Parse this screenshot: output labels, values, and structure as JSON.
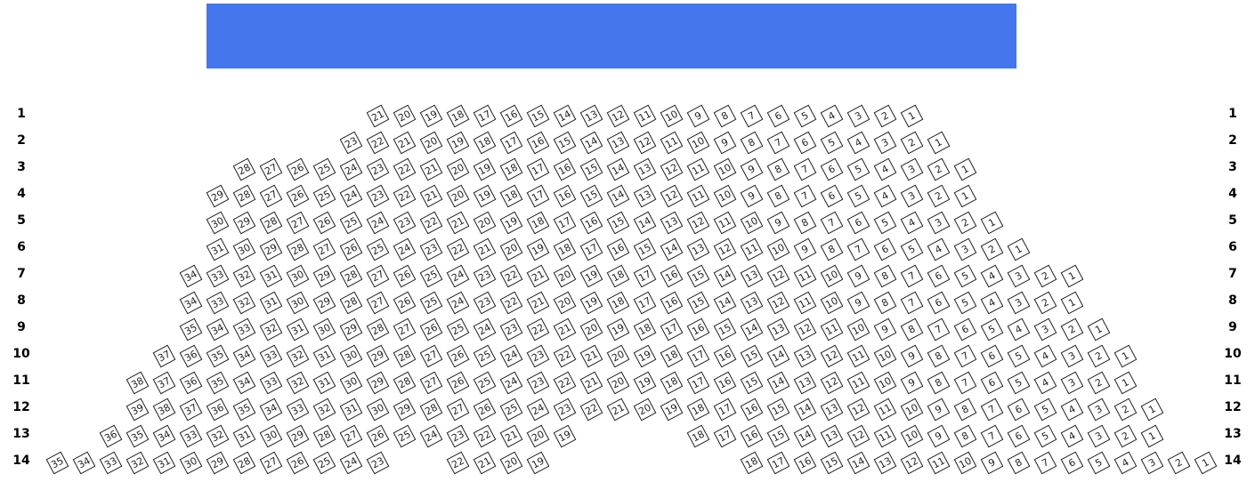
{
  "stage": {
    "color": "#4477ee"
  },
  "rows": [
    {
      "label": "1",
      "seats": [
        21,
        20,
        19,
        18,
        17,
        16,
        15,
        14,
        13,
        12,
        11,
        10,
        9,
        8,
        7,
        6,
        5,
        4,
        3,
        2,
        1
      ]
    },
    {
      "label": "2",
      "seats": [
        23,
        22,
        21,
        20,
        19,
        18,
        17,
        16,
        15,
        14,
        13,
        12,
        11,
        10,
        9,
        8,
        7,
        6,
        5,
        4,
        3,
        2,
        1
      ]
    },
    {
      "label": "3",
      "seats": [
        28,
        27,
        26,
        25,
        24,
        23,
        22,
        21,
        20,
        19,
        18,
        17,
        16,
        15,
        14,
        13,
        12,
        11,
        10,
        9,
        8,
        7,
        6,
        5,
        4,
        3,
        2,
        1
      ]
    },
    {
      "label": "4",
      "seats": [
        29,
        28,
        27,
        26,
        25,
        24,
        23,
        22,
        21,
        20,
        19,
        18,
        17,
        16,
        15,
        14,
        13,
        12,
        11,
        10,
        9,
        8,
        7,
        6,
        5,
        4,
        3,
        2,
        1
      ]
    },
    {
      "label": "5",
      "seats": [
        30,
        29,
        28,
        27,
        26,
        25,
        24,
        23,
        22,
        21,
        20,
        19,
        18,
        17,
        16,
        15,
        14,
        13,
        12,
        11,
        10,
        9,
        8,
        7,
        6,
        5,
        4,
        3,
        2,
        1
      ]
    },
    {
      "label": "6",
      "seats": [
        31,
        30,
        29,
        28,
        27,
        26,
        25,
        24,
        23,
        22,
        21,
        20,
        19,
        18,
        17,
        16,
        15,
        14,
        13,
        12,
        11,
        10,
        9,
        8,
        7,
        6,
        5,
        4,
        3,
        2,
        1
      ]
    },
    {
      "label": "7",
      "seats": [
        34,
        33,
        32,
        31,
        30,
        29,
        28,
        27,
        26,
        25,
        24,
        23,
        22,
        21,
        20,
        19,
        18,
        17,
        16,
        15,
        14,
        13,
        12,
        11,
        10,
        9,
        8,
        7,
        6,
        5,
        4,
        3,
        2,
        1
      ]
    },
    {
      "label": "8",
      "seats": [
        34,
        33,
        32,
        31,
        30,
        29,
        28,
        27,
        26,
        25,
        24,
        23,
        22,
        21,
        20,
        19,
        18,
        17,
        16,
        15,
        14,
        13,
        12,
        11,
        10,
        9,
        8,
        7,
        6,
        5,
        4,
        3,
        2,
        1
      ]
    },
    {
      "label": "9",
      "seats": [
        35,
        34,
        33,
        32,
        31,
        30,
        29,
        28,
        27,
        26,
        25,
        24,
        23,
        22,
        21,
        20,
        19,
        18,
        17,
        16,
        15,
        14,
        13,
        12,
        11,
        10,
        9,
        8,
        7,
        6,
        5,
        4,
        3,
        2,
        1
      ]
    },
    {
      "label": "10",
      "seats": [
        37,
        36,
        35,
        34,
        33,
        32,
        31,
        30,
        29,
        28,
        27,
        26,
        25,
        24,
        23,
        22,
        21,
        20,
        19,
        18,
        17,
        16,
        15,
        14,
        13,
        12,
        11,
        10,
        9,
        8,
        7,
        6,
        5,
        4,
        3,
        2,
        1
      ]
    },
    {
      "label": "11",
      "seats": [
        38,
        37,
        36,
        35,
        34,
        33,
        32,
        31,
        30,
        29,
        28,
        27,
        26,
        25,
        24,
        23,
        22,
        21,
        20,
        19,
        18,
        17,
        16,
        15,
        14,
        13,
        12,
        11,
        10,
        9,
        8,
        7,
        6,
        5,
        4,
        3,
        2,
        1
      ]
    },
    {
      "label": "12",
      "seats": [
        39,
        38,
        37,
        36,
        35,
        34,
        33,
        32,
        31,
        30,
        29,
        28,
        27,
        26,
        25,
        24,
        23,
        22,
        21,
        20,
        19,
        18,
        17,
        16,
        15,
        14,
        13,
        12,
        11,
        10,
        9,
        8,
        7,
        6,
        5,
        4,
        3,
        2,
        1
      ]
    },
    {
      "label": "13",
      "seats": [
        36,
        35,
        34,
        33,
        32,
        31,
        30,
        29,
        28,
        27,
        26,
        25,
        24,
        23,
        22,
        21,
        20,
        19,
        null,
        null,
        null,
        null,
        18,
        17,
        16,
        15,
        14,
        13,
        12,
        11,
        10,
        9,
        8,
        7,
        6,
        5,
        4,
        3,
        2,
        1
      ]
    },
    {
      "label": "14",
      "seats": [
        35,
        34,
        33,
        32,
        31,
        30,
        29,
        28,
        27,
        26,
        25,
        24,
        23,
        null,
        null,
        22,
        21,
        20,
        19,
        null,
        null,
        null,
        null,
        null,
        null,
        null,
        18,
        17,
        16,
        15,
        14,
        13,
        12,
        11,
        10,
        9,
        8,
        7,
        6,
        5,
        4,
        3,
        2,
        1
      ]
    }
  ]
}
